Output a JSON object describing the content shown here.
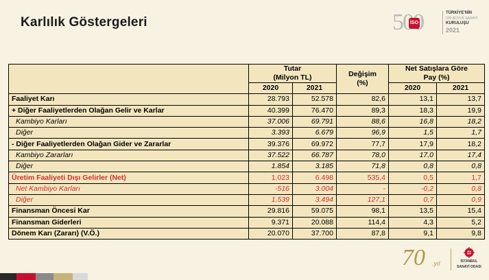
{
  "title": "Karlılık Göstergeleri",
  "logo500": {
    "digits": "500",
    "badge": "İSO",
    "line1": "TÜRKİYE'NİN",
    "line2": "500 BÜYÜK SANAYİ",
    "line3": "KURULUŞU",
    "year": "2021"
  },
  "table": {
    "headers": {
      "tutar": "Tutar",
      "tutar_unit": "(Milyon TL)",
      "degisim": "Değişim",
      "degisim_unit": "(%)",
      "pay": "Net Satışlara Göre",
      "pay_unit": "Pay (%)",
      "y2020": "2020",
      "y2021": "2021"
    },
    "rows": [
      {
        "label": "Faaliyet Karı",
        "t2020": "28.793",
        "t2021": "52.578",
        "chg": "82,6",
        "p2020": "13,1",
        "p2021": "13,7"
      },
      {
        "label": "+ Diğer Faaliyetlerden Olağan Gelir ve Karlar",
        "t2020": "40.399",
        "t2021": "76.470",
        "chg": "89,3",
        "p2020": "18,3",
        "p2021": "19,9"
      },
      {
        "label": "Kambiyo Karları",
        "t2020": "37.006",
        "t2021": "69.791",
        "chg": "88,6",
        "p2020": "16,8",
        "p2021": "18,2"
      },
      {
        "label": "Diğer",
        "t2020": "3.393",
        "t2021": "6.679",
        "chg": "96,9",
        "p2020": "1,5",
        "p2021": "1,7"
      },
      {
        "label": "- Diğer Faaliyetlerden Olağan Gider ve Zararlar",
        "t2020": "39.376",
        "t2021": "69.972",
        "chg": "77,7",
        "p2020": "17,9",
        "p2021": "18,2"
      },
      {
        "label": "Kambiyo Zararları",
        "t2020": "37.522",
        "t2021": "66.787",
        "chg": "78,0",
        "p2020": "17,0",
        "p2021": "17,4"
      },
      {
        "label": "Diğer",
        "t2020": "1.854",
        "t2021": "3.185",
        "chg": "71,8",
        "p2020": "0,8",
        "p2021": "0,8"
      },
      {
        "label": "Üretim Faaliyeti Dışı Gelirler (Net)",
        "t2020": "1.023",
        "t2021": "6.498",
        "chg": "535,4",
        "p2020": "0,5",
        "p2021": "1,7"
      },
      {
        "label": "Net Kambiyo Karları",
        "t2020": "-516",
        "t2021": "3.004",
        "chg": "-",
        "p2020": "-0,2",
        "p2021": "0,8"
      },
      {
        "label": "Diğer",
        "t2020": "1.539",
        "t2021": "3.494",
        "chg": "127,1",
        "p2020": "0,7",
        "p2021": "0,9"
      },
      {
        "label": "Finansman Öncesi Kar",
        "t2020": "29.816",
        "t2021": "59.075",
        "chg": "98,1",
        "p2020": "13,5",
        "p2021": "15,4"
      },
      {
        "label": "Finansman Giderleri",
        "t2020": "9.371",
        "t2021": "20.088",
        "chg": "114,4",
        "p2020": "4,3",
        "p2021": "5,2"
      },
      {
        "label": "Dönem Karı (Zararı) (V.Ö.)",
        "t2020": "20.070",
        "t2021": "37.700",
        "chg": "87,8",
        "p2020": "9,1",
        "p2021": "9,8"
      }
    ]
  },
  "logo70": {
    "number": "70",
    "suffix": ".yıl"
  },
  "iso_logo": {
    "line1": "İSTANBUL",
    "line2": "SANAYİ ODASI"
  },
  "colors": {
    "background": "#f7f2e2",
    "table_fill": "#f3e6bf",
    "red_text": "#d0312d",
    "stripes": [
      "#2a2a2a",
      "#c8102e",
      "#8a8a8a",
      "#c9b27a",
      "#d9d9d9"
    ]
  }
}
